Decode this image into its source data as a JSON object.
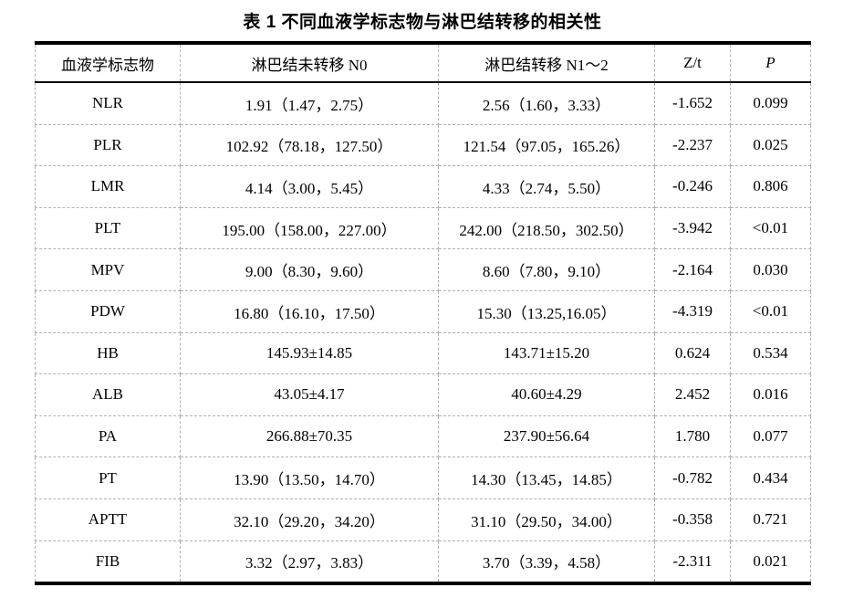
{
  "title": "表 1 不同血液学标志物与淋巴结转移的相关性",
  "table": {
    "headers": [
      "血液学标志物",
      "淋巴结未转移 N0",
      "淋巴结转移 N1～2",
      "Z/t",
      "P"
    ],
    "rows": [
      [
        "NLR",
        "1.91（1.47，2.75）",
        "2.56（1.60，3.33）",
        "-1.652",
        "0.099"
      ],
      [
        "PLR",
        "102.92（78.18，127.50）",
        "121.54（97.05，165.26）",
        "-2.237",
        "0.025"
      ],
      [
        "LMR",
        "4.14（3.00，5.45）",
        "4.33（2.74，5.50）",
        "-0.246",
        "0.806"
      ],
      [
        "PLT",
        "195.00（158.00，227.00）",
        "242.00（218.50，302.50）",
        "-3.942",
        "<0.01"
      ],
      [
        "MPV",
        "9.00（8.30，9.60）",
        "8.60（7.80，9.10）",
        "-2.164",
        "0.030"
      ],
      [
        "PDW",
        "16.80（16.10，17.50）",
        "15.30（13.25,16.05）",
        "-4.319",
        "<0.01"
      ],
      [
        "HB",
        "145.93±14.85",
        "143.71±15.20",
        "0.624",
        "0.534"
      ],
      [
        "ALB",
        "43.05±4.17",
        "40.60±4.29",
        "2.452",
        "0.016"
      ],
      [
        "PA",
        "266.88±70.35",
        "237.90±56.64",
        "1.780",
        "0.077"
      ],
      [
        "PT",
        "13.90（13.50，14.70）",
        "14.30（13.45，14.85）",
        "-0.782",
        "0.434"
      ],
      [
        "APTT",
        "32.10（29.20，34.20）",
        "31.10（29.50，34.00）",
        "-0.358",
        "0.721"
      ],
      [
        "FIB",
        "3.32（2.97，3.83）",
        "3.70（3.39，4.58）",
        "-2.311",
        "0.021"
      ]
    ]
  },
  "colors": {
    "text": "#000000",
    "background": "#ffffff",
    "border_strong": "#000000",
    "border_grid": "#b0b0b0"
  }
}
